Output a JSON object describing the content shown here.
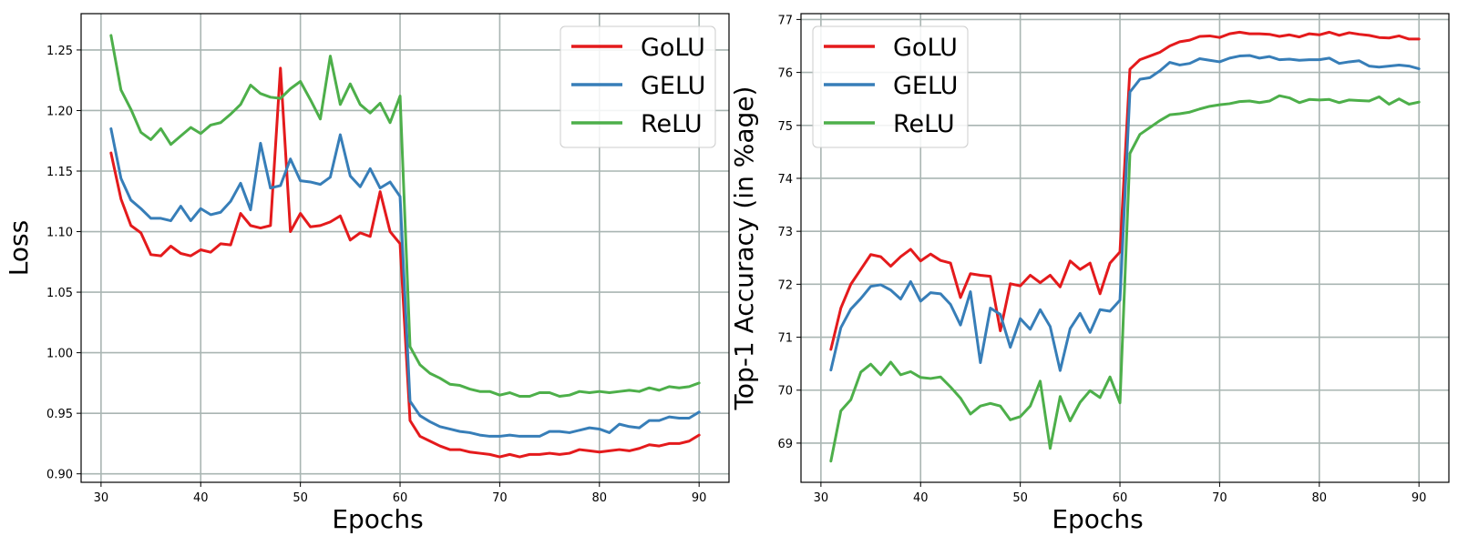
{
  "chart_data": [
    {
      "type": "line",
      "xlabel": "Epochs",
      "ylabel": "Loss",
      "xlim": [
        28,
        93
      ],
      "ylim": [
        0.893,
        1.28
      ],
      "xticks": [
        30,
        40,
        50,
        60,
        70,
        80,
        90
      ],
      "yticks": [
        0.9,
        0.95,
        1.0,
        1.05,
        1.1,
        1.15,
        1.2,
        1.25
      ],
      "grid": true,
      "legend_position": "top-right",
      "x": [
        31,
        32,
        33,
        34,
        35,
        36,
        37,
        38,
        39,
        40,
        41,
        42,
        43,
        44,
        45,
        46,
        47,
        48,
        49,
        50,
        51,
        52,
        53,
        54,
        55,
        56,
        57,
        58,
        59,
        60,
        61,
        62,
        63,
        64,
        65,
        66,
        67,
        68,
        69,
        70,
        71,
        72,
        73,
        74,
        75,
        76,
        77,
        78,
        79,
        80,
        81,
        82,
        83,
        84,
        85,
        86,
        87,
        88,
        89,
        90
      ],
      "series": [
        {
          "name": "GoLU",
          "color": "#e41a1c",
          "values": [
            1.165,
            1.127,
            1.105,
            1.099,
            1.081,
            1.08,
            1.088,
            1.082,
            1.08,
            1.085,
            1.083,
            1.09,
            1.089,
            1.115,
            1.105,
            1.103,
            1.105,
            1.235,
            1.1,
            1.115,
            1.104,
            1.105,
            1.108,
            1.113,
            1.093,
            1.099,
            1.096,
            1.133,
            1.1,
            1.09,
            0.944,
            0.931,
            0.927,
            0.923,
            0.92,
            0.92,
            0.918,
            0.917,
            0.916,
            0.914,
            0.916,
            0.914,
            0.916,
            0.916,
            0.917,
            0.916,
            0.917,
            0.92,
            0.919,
            0.918,
            0.919,
            0.92,
            0.919,
            0.921,
            0.924,
            0.923,
            0.925,
            0.925,
            0.927,
            0.932
          ]
        },
        {
          "name": "GELU",
          "color": "#377eb8",
          "values": [
            1.185,
            1.144,
            1.126,
            1.119,
            1.111,
            1.111,
            1.109,
            1.121,
            1.109,
            1.119,
            1.114,
            1.116,
            1.125,
            1.14,
            1.118,
            1.173,
            1.136,
            1.138,
            1.16,
            1.142,
            1.141,
            1.139,
            1.145,
            1.18,
            1.146,
            1.137,
            1.152,
            1.136,
            1.141,
            1.129,
            0.96,
            0.948,
            0.943,
            0.939,
            0.937,
            0.935,
            0.934,
            0.932,
            0.931,
            0.931,
            0.932,
            0.931,
            0.931,
            0.931,
            0.935,
            0.935,
            0.934,
            0.936,
            0.938,
            0.937,
            0.934,
            0.941,
            0.939,
            0.938,
            0.944,
            0.944,
            0.947,
            0.946,
            0.946,
            0.951
          ]
        },
        {
          "name": "ReLU",
          "color": "#4daf4a",
          "values": [
            1.262,
            1.217,
            1.201,
            1.182,
            1.176,
            1.185,
            1.172,
            1.179,
            1.186,
            1.181,
            1.188,
            1.19,
            1.197,
            1.205,
            1.221,
            1.214,
            1.211,
            1.21,
            1.218,
            1.224,
            1.209,
            1.193,
            1.245,
            1.205,
            1.222,
            1.205,
            1.198,
            1.206,
            1.19,
            1.212,
            1.005,
            0.99,
            0.983,
            0.979,
            0.974,
            0.973,
            0.97,
            0.968,
            0.968,
            0.965,
            0.967,
            0.964,
            0.964,
            0.967,
            0.967,
            0.964,
            0.965,
            0.968,
            0.967,
            0.968,
            0.967,
            0.968,
            0.969,
            0.968,
            0.971,
            0.969,
            0.972,
            0.971,
            0.972,
            0.975
          ]
        }
      ]
    },
    {
      "type": "line",
      "xlabel": "Epochs",
      "ylabel": "Top-1 Accuracy (in %age)",
      "xlim": [
        28,
        93
      ],
      "ylim": [
        68.26,
        77.11
      ],
      "xticks": [
        30,
        40,
        50,
        60,
        70,
        80,
        90
      ],
      "yticks": [
        69,
        70,
        71,
        72,
        73,
        74,
        75,
        76,
        77
      ],
      "grid": true,
      "legend_position": "top-left",
      "x": [
        31,
        32,
        33,
        34,
        35,
        36,
        37,
        38,
        39,
        40,
        41,
        42,
        43,
        44,
        45,
        46,
        47,
        48,
        49,
        50,
        51,
        52,
        53,
        54,
        55,
        56,
        57,
        58,
        59,
        60,
        61,
        62,
        63,
        64,
        65,
        66,
        67,
        68,
        69,
        70,
        71,
        72,
        73,
        74,
        75,
        76,
        77,
        78,
        79,
        80,
        81,
        82,
        83,
        84,
        85,
        86,
        87,
        88,
        89,
        90
      ],
      "series": [
        {
          "name": "GoLU",
          "color": "#e41a1c",
          "values": [
            70.77,
            71.55,
            72.0,
            72.28,
            72.56,
            72.52,
            72.34,
            72.52,
            72.66,
            72.44,
            72.57,
            72.45,
            72.4,
            71.75,
            72.2,
            72.17,
            72.15,
            71.12,
            72.01,
            71.97,
            72.17,
            72.03,
            72.17,
            71.95,
            72.44,
            72.28,
            72.4,
            71.82,
            72.4,
            72.61,
            76.06,
            76.24,
            76.31,
            76.38,
            76.5,
            76.58,
            76.61,
            76.68,
            76.69,
            76.66,
            76.73,
            76.76,
            76.73,
            76.73,
            76.72,
            76.68,
            76.71,
            76.67,
            76.73,
            76.71,
            76.76,
            76.7,
            76.75,
            76.72,
            76.7,
            76.66,
            76.65,
            76.69,
            76.63,
            76.63
          ]
        },
        {
          "name": "GELU",
          "color": "#377eb8",
          "values": [
            70.38,
            71.18,
            71.53,
            71.73,
            71.96,
            71.99,
            71.89,
            71.72,
            72.05,
            71.68,
            71.84,
            71.82,
            71.62,
            71.23,
            71.86,
            70.52,
            71.55,
            71.43,
            70.81,
            71.35,
            71.15,
            71.52,
            71.2,
            70.37,
            71.16,
            71.45,
            71.09,
            71.52,
            71.49,
            71.7,
            75.63,
            75.87,
            75.9,
            76.03,
            76.19,
            76.14,
            76.17,
            76.26,
            76.23,
            76.2,
            76.27,
            76.31,
            76.32,
            76.27,
            76.3,
            76.24,
            76.25,
            76.23,
            76.24,
            76.24,
            76.27,
            76.17,
            76.2,
            76.22,
            76.12,
            76.1,
            76.12,
            76.14,
            76.12,
            76.07
          ]
        },
        {
          "name": "ReLU",
          "color": "#4daf4a",
          "values": [
            68.66,
            69.61,
            69.82,
            70.34,
            70.49,
            70.29,
            70.53,
            70.29,
            70.35,
            70.24,
            70.22,
            70.25,
            70.06,
            69.85,
            69.55,
            69.7,
            69.75,
            69.7,
            69.44,
            69.5,
            69.7,
            70.17,
            68.9,
            69.88,
            69.42,
            69.77,
            69.99,
            69.86,
            70.25,
            69.76,
            74.47,
            74.83,
            74.96,
            75.09,
            75.2,
            75.22,
            75.25,
            75.31,
            75.36,
            75.39,
            75.41,
            75.45,
            75.46,
            75.43,
            75.46,
            75.56,
            75.52,
            75.43,
            75.49,
            75.48,
            75.49,
            75.43,
            75.48,
            75.47,
            75.46,
            75.54,
            75.4,
            75.5,
            75.4,
            75.44
          ]
        }
      ]
    }
  ]
}
